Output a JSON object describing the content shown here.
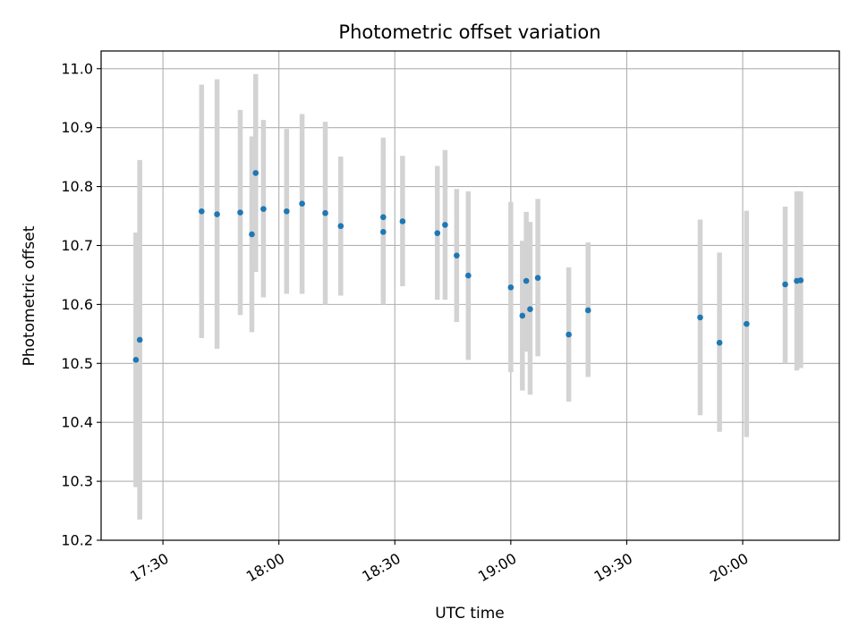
{
  "chart_data": {
    "type": "scatter",
    "title": "Photometric offset variation",
    "xlabel": "UTC time",
    "ylabel": "Photometric offset",
    "xlim": [
      "17:14",
      "20:25"
    ],
    "ylim": [
      10.2,
      11.03
    ],
    "grid": true,
    "x_ticks": [
      "17:30",
      "18:00",
      "18:30",
      "19:00",
      "19:30",
      "20:00"
    ],
    "y_ticks": [
      "10.2",
      "10.3",
      "10.4",
      "10.5",
      "10.6",
      "10.7",
      "10.8",
      "10.9",
      "11.0"
    ],
    "colors": {
      "points": "#1f77b4",
      "error_bars": "#d3d3d3",
      "grid": "#b0b0b0"
    },
    "series": [
      {
        "points": [
          {
            "x": "17:23",
            "y": 10.506,
            "ylow": 10.29,
            "yhigh": 10.722
          },
          {
            "x": "17:24",
            "y": 10.54,
            "ylow": 10.235,
            "yhigh": 10.845
          },
          {
            "x": "17:40",
            "y": 10.758,
            "ylow": 10.543,
            "yhigh": 10.973
          },
          {
            "x": "17:44",
            "y": 10.753,
            "ylow": 10.525,
            "yhigh": 10.982
          },
          {
            "x": "17:50",
            "y": 10.756,
            "ylow": 10.582,
            "yhigh": 10.93
          },
          {
            "x": "17:53",
            "y": 10.719,
            "ylow": 10.553,
            "yhigh": 10.885
          },
          {
            "x": "17:54",
            "y": 10.823,
            "ylow": 10.655,
            "yhigh": 10.991
          },
          {
            "x": "17:56",
            "y": 10.762,
            "ylow": 10.612,
            "yhigh": 10.913
          },
          {
            "x": "18:02",
            "y": 10.758,
            "ylow": 10.618,
            "yhigh": 10.898
          },
          {
            "x": "18:06",
            "y": 10.771,
            "ylow": 10.618,
            "yhigh": 10.923
          },
          {
            "x": "18:12",
            "y": 10.755,
            "ylow": 10.6,
            "yhigh": 10.91
          },
          {
            "x": "18:16",
            "y": 10.733,
            "ylow": 10.615,
            "yhigh": 10.851
          },
          {
            "x": "18:27",
            "y": 10.723,
            "ylow": 10.6,
            "yhigh": 10.845
          },
          {
            "x": "18:27",
            "y": 10.748,
            "ylow": 10.613,
            "yhigh": 10.883
          },
          {
            "x": "18:32",
            "y": 10.741,
            "ylow": 10.631,
            "yhigh": 10.852
          },
          {
            "x": "18:41",
            "y": 10.721,
            "ylow": 10.608,
            "yhigh": 10.835
          },
          {
            "x": "18:43",
            "y": 10.735,
            "ylow": 10.608,
            "yhigh": 10.862
          },
          {
            "x": "18:46",
            "y": 10.683,
            "ylow": 10.57,
            "yhigh": 10.796
          },
          {
            "x": "18:49",
            "y": 10.649,
            "ylow": 10.506,
            "yhigh": 10.792
          },
          {
            "x": "19:00",
            "y": 10.629,
            "ylow": 10.485,
            "yhigh": 10.774
          },
          {
            "x": "19:03",
            "y": 10.581,
            "ylow": 10.454,
            "yhigh": 10.708
          },
          {
            "x": "19:04",
            "y": 10.64,
            "ylow": 10.52,
            "yhigh": 10.757
          },
          {
            "x": "19:05",
            "y": 10.592,
            "ylow": 10.447,
            "yhigh": 10.74
          },
          {
            "x": "19:07",
            "y": 10.645,
            "ylow": 10.512,
            "yhigh": 10.779
          },
          {
            "x": "19:15",
            "y": 10.549,
            "ylow": 10.435,
            "yhigh": 10.663
          },
          {
            "x": "19:20",
            "y": 10.59,
            "ylow": 10.477,
            "yhigh": 10.705
          },
          {
            "x": "19:49",
            "y": 10.578,
            "ylow": 10.412,
            "yhigh": 10.744
          },
          {
            "x": "19:54",
            "y": 10.535,
            "ylow": 10.384,
            "yhigh": 10.688
          },
          {
            "x": "20:01",
            "y": 10.567,
            "ylow": 10.375,
            "yhigh": 10.759
          },
          {
            "x": "20:11",
            "y": 10.634,
            "ylow": 10.5,
            "yhigh": 10.766
          },
          {
            "x": "20:14",
            "y": 10.64,
            "ylow": 10.488,
            "yhigh": 10.792
          },
          {
            "x": "20:15",
            "y": 10.641,
            "ylow": 10.492,
            "yhigh": 10.792
          }
        ]
      }
    ]
  }
}
